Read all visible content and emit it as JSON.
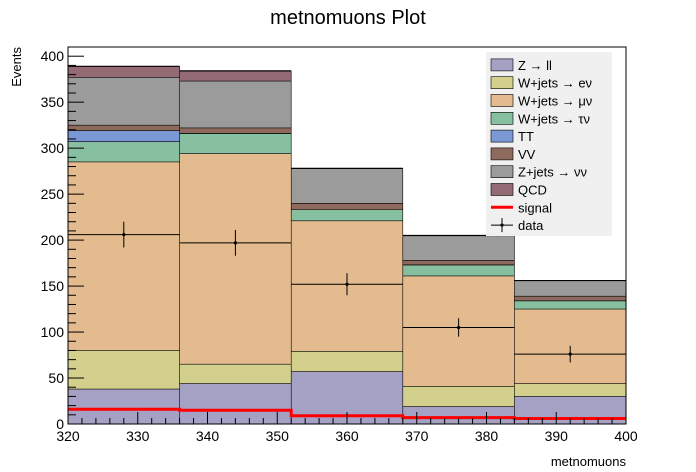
{
  "chart_data": {
    "type": "bar",
    "stacked": true,
    "title": "metnomuons Plot",
    "xlabel": "metnomuons",
    "ylabel": "Events",
    "xlim": [
      320,
      400
    ],
    "ylim": [
      0,
      410
    ],
    "bin_edges": [
      320,
      336,
      352,
      368,
      384,
      400
    ],
    "x_ticks": [
      320,
      330,
      340,
      350,
      360,
      370,
      380,
      390,
      400
    ],
    "y_ticks": [
      0,
      50,
      100,
      150,
      200,
      250,
      300,
      350,
      400
    ],
    "legend_position": "top-right",
    "series": [
      {
        "name": "Z → ll",
        "color": "#a5a1c4",
        "values": [
          38,
          44,
          57,
          19,
          30
        ]
      },
      {
        "name": "W+jets → eν",
        "color": "#d2d08c",
        "values": [
          42,
          21,
          22,
          22,
          14
        ]
      },
      {
        "name": "W+jets → μν",
        "color": "#e3bb8e",
        "values": [
          205,
          229,
          142,
          120,
          81
        ]
      },
      {
        "name": "W+jets → τν",
        "color": "#86c0a0",
        "values": [
          22,
          22,
          12,
          12,
          9
        ]
      },
      {
        "name": "TT",
        "color": "#7a98d4",
        "values": [
          12,
          0,
          0,
          0,
          0
        ]
      },
      {
        "name": "VV",
        "color": "#8e6a5e",
        "values": [
          6,
          6,
          7,
          5,
          5
        ]
      },
      {
        "name": "Z+jets → νν",
        "color": "#9b9b9b",
        "values": [
          52,
          51,
          38,
          27,
          17
        ]
      },
      {
        "name": "QCD",
        "color": "#946a74",
        "values": [
          12,
          11,
          0,
          0,
          0
        ]
      }
    ],
    "signal": {
      "name": "signal",
      "color": "#ff0000",
      "values": [
        16,
        15,
        9,
        7,
        6
      ]
    },
    "data": {
      "name": "data",
      "x": [
        328,
        344,
        360,
        376,
        392
      ],
      "y": [
        206,
        197,
        152,
        105,
        76
      ],
      "yerr": [
        14,
        14,
        12,
        10,
        9
      ]
    }
  }
}
